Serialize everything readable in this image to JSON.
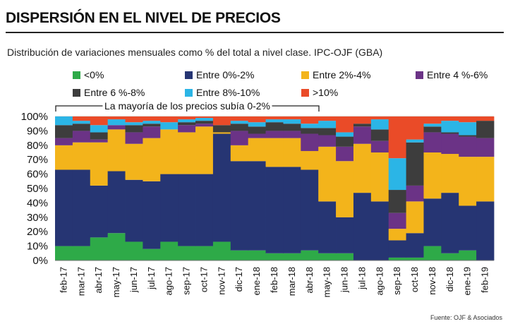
{
  "title": "DISPERSIÓN EN EL NIVEL DE PRECIOS",
  "subtitle": "Distribución de variaciones mensuales como % del total a nivel clase. IPC-OJF (GBA)",
  "source": "Fuente: OJF & Asociados",
  "colors": {
    "s0": "#2eaa48",
    "s1": "#263573",
    "s2": "#f3b41b",
    "s3": "#6b3386",
    "s4": "#3d3d3d",
    "s5": "#2bb5e6",
    "s6": "#ea4b28"
  },
  "chart_data": {
    "type": "bar",
    "stacked": true,
    "annotation": "La mayoría de los precios subía 0-2%",
    "ylim": [
      0,
      100
    ],
    "yticks": [
      "0%",
      "10%",
      "20%",
      "30%",
      "40%",
      "50%",
      "60%",
      "70%",
      "80%",
      "90%",
      "100%"
    ],
    "categories": [
      "feb-17",
      "mar-17",
      "abr-17",
      "may-17",
      "jun-17",
      "jul-17",
      "ago-17",
      "sep-17",
      "oct-17",
      "nov-17",
      "dic-17",
      "ene-18",
      "feb-18",
      "mar-18",
      "abr-18",
      "may-18",
      "jun-18",
      "jul-18",
      "ago-18",
      "sep-18",
      "oct-18",
      "nov-18",
      "dic-18",
      "ene-19",
      "feb-19"
    ],
    "series": [
      {
        "name": "<0%",
        "values": [
          10,
          10,
          16,
          19,
          13,
          8,
          13,
          10,
          10,
          13,
          7,
          7,
          5,
          5,
          7,
          5,
          5,
          0,
          0,
          2,
          2,
          10,
          5,
          7,
          0
        ]
      },
      {
        "name": "Entre 0%-2%",
        "values": [
          53,
          53,
          36,
          43,
          43,
          47,
          47,
          50,
          50,
          75,
          62,
          62,
          60,
          60,
          56,
          36,
          25,
          47,
          41,
          12,
          17,
          33,
          42,
          31,
          41
        ]
      },
      {
        "name": "Entre 2%-4%",
        "values": [
          17,
          19,
          30,
          29,
          25,
          30,
          31,
          29,
          33,
          1,
          11,
          16,
          20,
          20,
          13,
          38,
          39,
          34,
          34,
          8,
          22,
          32,
          27,
          34,
          31
        ]
      },
      {
        "name": "Entre 4 %-6%",
        "values": [
          5,
          8,
          2,
          3,
          8,
          8,
          0,
          5,
          2,
          0,
          10,
          3,
          5,
          5,
          12,
          8,
          10,
          12,
          8,
          11,
          11,
          14,
          14,
          14,
          13
        ]
      },
      {
        "name": "Entre 6 %-8%",
        "values": [
          9,
          5,
          5,
          0,
          5,
          2,
          0,
          2,
          2,
          5,
          5,
          5,
          6,
          5,
          4,
          5,
          7,
          2,
          8,
          16,
          30,
          4,
          1,
          1,
          12
        ]
      },
      {
        "name": "Entre 8%-10%",
        "values": [
          6,
          2,
          5,
          4,
          2,
          2,
          5,
          2,
          2,
          0,
          2,
          3,
          2,
          3,
          3,
          5,
          3,
          0,
          7,
          22,
          2,
          2,
          8,
          9,
          0
        ]
      },
      {
        "name": ">10%",
        "values": [
          0,
          3,
          6,
          2,
          4,
          3,
          4,
          2,
          1,
          6,
          3,
          4,
          2,
          2,
          5,
          3,
          11,
          5,
          2,
          29,
          16,
          5,
          3,
          4,
          3
        ]
      }
    ]
  }
}
